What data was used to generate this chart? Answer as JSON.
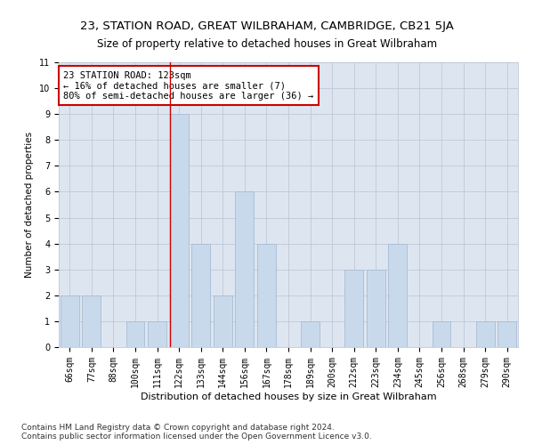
{
  "title1": "23, STATION ROAD, GREAT WILBRAHAM, CAMBRIDGE, CB21 5JA",
  "title2": "Size of property relative to detached houses in Great Wilbraham",
  "xlabel": "Distribution of detached houses by size in Great Wilbraham",
  "ylabel": "Number of detached properties",
  "footnote": "Contains HM Land Registry data © Crown copyright and database right 2024.\nContains public sector information licensed under the Open Government Licence v3.0.",
  "categories": [
    "66sqm",
    "77sqm",
    "88sqm",
    "100sqm",
    "111sqm",
    "122sqm",
    "133sqm",
    "144sqm",
    "156sqm",
    "167sqm",
    "178sqm",
    "189sqm",
    "200sqm",
    "212sqm",
    "223sqm",
    "234sqm",
    "245sqm",
    "256sqm",
    "268sqm",
    "279sqm",
    "290sqm"
  ],
  "values": [
    2,
    2,
    0,
    1,
    1,
    9,
    4,
    2,
    6,
    4,
    0,
    1,
    0,
    3,
    3,
    4,
    0,
    1,
    0,
    1,
    1
  ],
  "bar_color": "#c9d9ec",
  "bar_edge_color": "#a8bcd4",
  "highlight_index": 5,
  "annotation_text": "23 STATION ROAD: 123sqm\n← 16% of detached houses are smaller (7)\n80% of semi-detached houses are larger (36) →",
  "annotation_box_color": "#ffffff",
  "annotation_box_edge_color": "#cc0000",
  "red_line_color": "#cc0000",
  "grid_color": "#c0c8d8",
  "ax_bg_color": "#dde6f0",
  "background_color": "#ffffff",
  "ylim": [
    0,
    11
  ],
  "yticks": [
    0,
    1,
    2,
    3,
    4,
    5,
    6,
    7,
    8,
    9,
    10,
    11
  ],
  "title1_fontsize": 9.5,
  "title2_fontsize": 8.5,
  "xlabel_fontsize": 8,
  "ylabel_fontsize": 7.5,
  "tick_fontsize": 7,
  "annotation_fontsize": 7.5,
  "footnote_fontsize": 6.5
}
